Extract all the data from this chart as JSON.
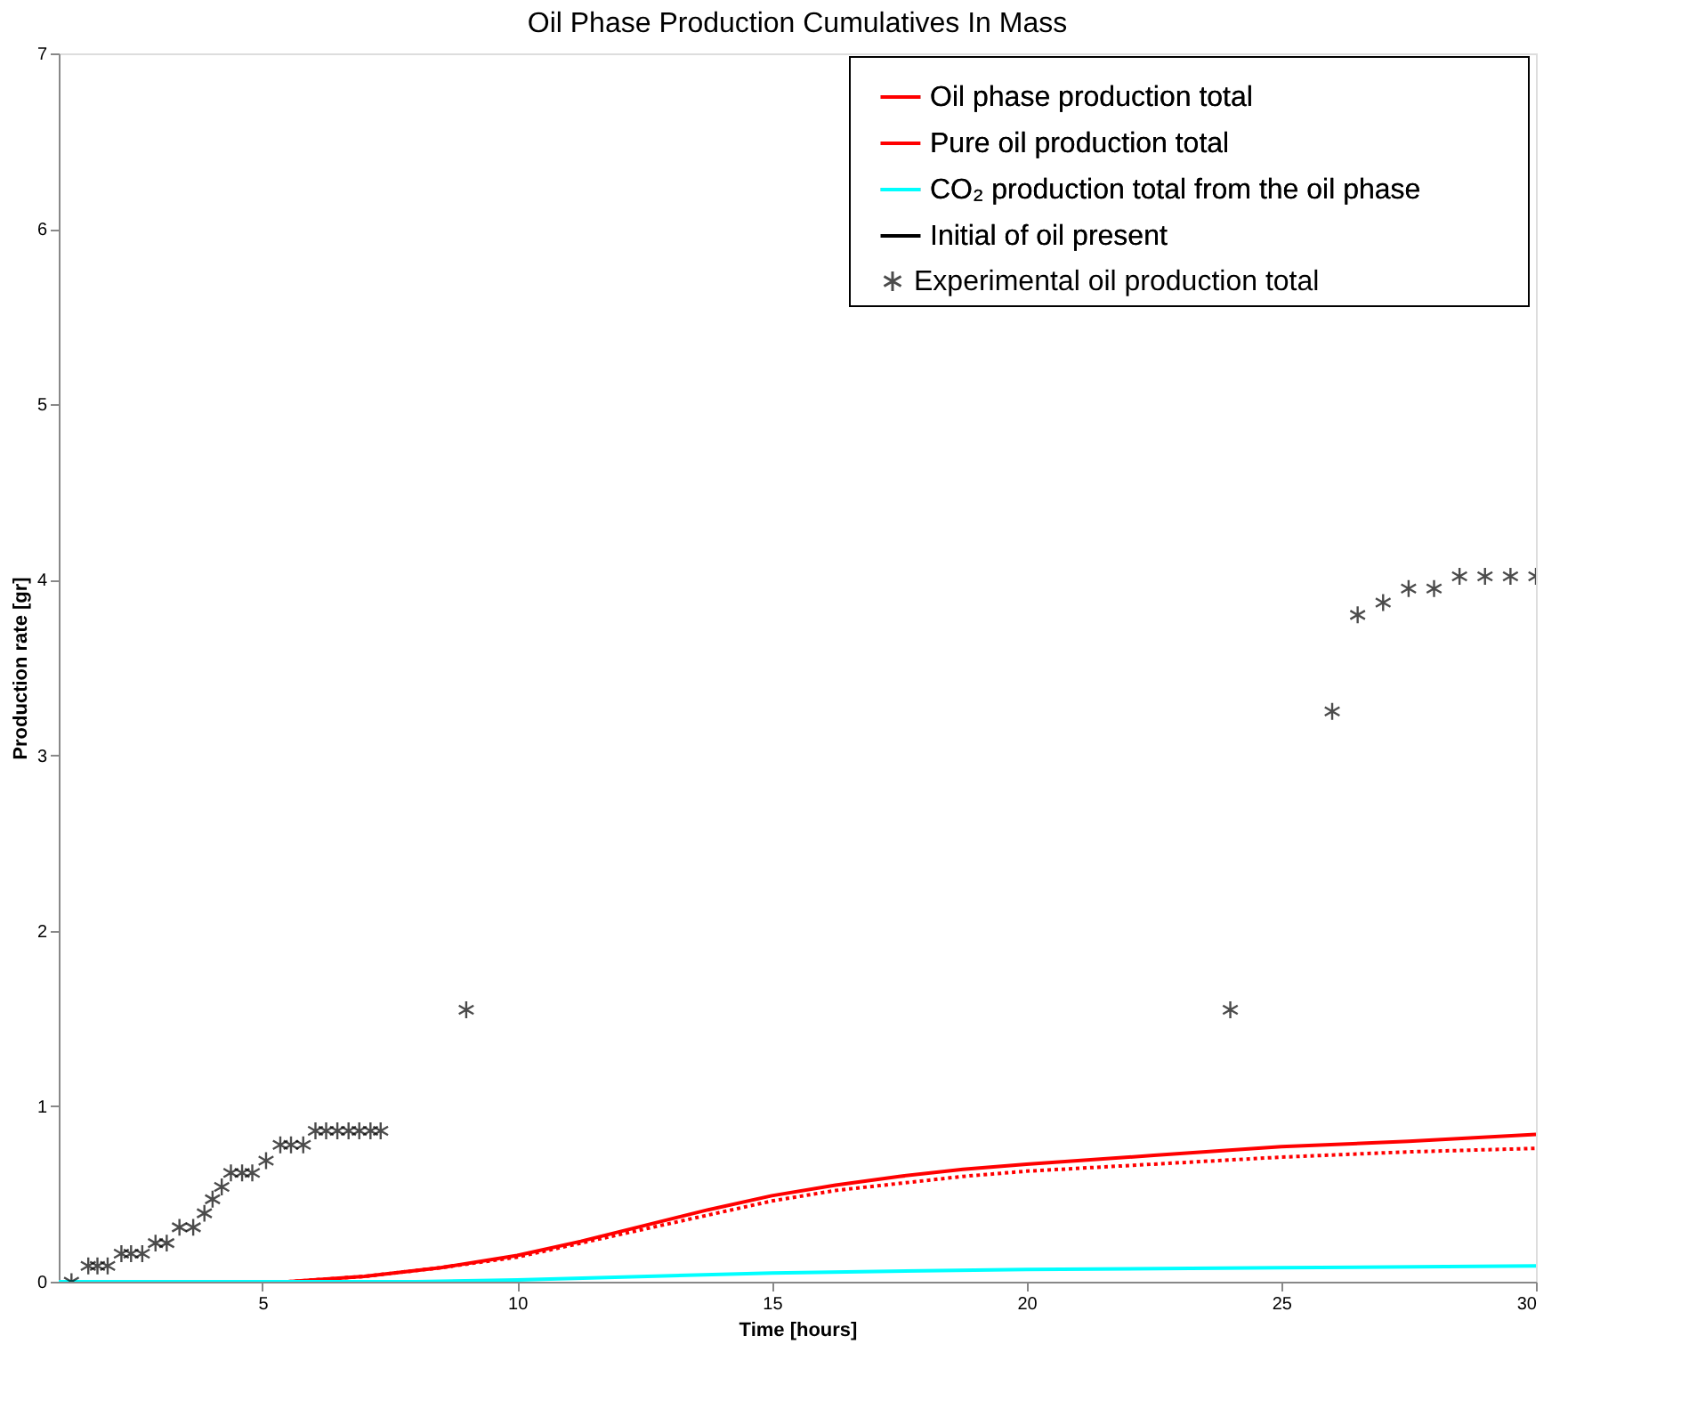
{
  "chart_data": {
    "type": "line",
    "title": "Oil Phase Production Cumulatives In Mass",
    "xlabel": "Time [hours]",
    "ylabel": "Production rate [gr]",
    "xlim": [
      1,
      30
    ],
    "ylim": [
      0,
      7
    ],
    "xticks": [
      5,
      10,
      15,
      20,
      25,
      30
    ],
    "yticks": [
      0,
      1,
      2,
      3,
      4,
      5,
      6,
      7
    ],
    "grid": false,
    "legend": "top right",
    "series": [
      {
        "name": "Oil phase production total",
        "color": "#ff0000",
        "type": "line",
        "line_style": "solid",
        "x": [
          5.5,
          7,
          8.5,
          10,
          11.25,
          12.5,
          13.75,
          15,
          16.25,
          17.5,
          18.75,
          20,
          22.5,
          25,
          27.5,
          30
        ],
        "values": [
          0,
          0.03,
          0.08,
          0.15,
          0.23,
          0.32,
          0.41,
          0.49,
          0.55,
          0.6,
          0.64,
          0.67,
          0.72,
          0.77,
          0.8,
          0.84
        ]
      },
      {
        "name": "Pure oil production total",
        "color": "#ff0000",
        "type": "line",
        "line_style": "dotted",
        "x": [
          5.5,
          7,
          8.5,
          10,
          11.25,
          12.5,
          13.75,
          15,
          16.25,
          17.5,
          18.75,
          20,
          22.5,
          25,
          27.5,
          30
        ],
        "values": [
          0,
          0.03,
          0.08,
          0.14,
          0.22,
          0.3,
          0.38,
          0.46,
          0.52,
          0.56,
          0.6,
          0.63,
          0.67,
          0.71,
          0.74,
          0.76
        ]
      },
      {
        "name": "CO₂ production total from the oil phase",
        "color": "#00ffff",
        "type": "line",
        "line_style": "solid",
        "x": [
          1,
          8,
          10,
          15,
          20,
          25,
          30
        ],
        "values": [
          0,
          0,
          0.01,
          0.05,
          0.07,
          0.08,
          0.09
        ]
      },
      {
        "name": "Initial of oil present",
        "color": "#000000",
        "type": "line",
        "line_style": "solid"
      },
      {
        "name": "Experimental oil production total",
        "color": "#000000",
        "type": "scatter",
        "marker": "cross",
        "x": [
          1.25,
          1.58,
          1.76,
          1.96,
          2.23,
          2.42,
          2.64,
          2.9,
          3.12,
          3.37,
          3.64,
          3.86,
          4.02,
          4.2,
          4.38,
          4.6,
          4.8,
          5.07,
          5.35,
          5.56,
          5.8,
          6.04,
          6.25,
          6.47,
          6.69,
          6.9,
          7.12,
          7.32,
          9,
          24,
          26,
          26.5,
          27,
          27.5,
          28,
          28.5,
          29,
          29.5,
          30
        ],
        "values": [
          0,
          0.09,
          0.09,
          0.09,
          0.16,
          0.16,
          0.16,
          0.22,
          0.22,
          0.31,
          0.31,
          0.39,
          0.47,
          0.54,
          0.62,
          0.62,
          0.62,
          0.69,
          0.78,
          0.78,
          0.78,
          0.86,
          0.86,
          0.86,
          0.86,
          0.86,
          0.86,
          0.86,
          1.55,
          1.55,
          3.25,
          3.8,
          3.87,
          3.95,
          3.95,
          4.02,
          4.02,
          4.02,
          4.02
        ]
      }
    ]
  }
}
